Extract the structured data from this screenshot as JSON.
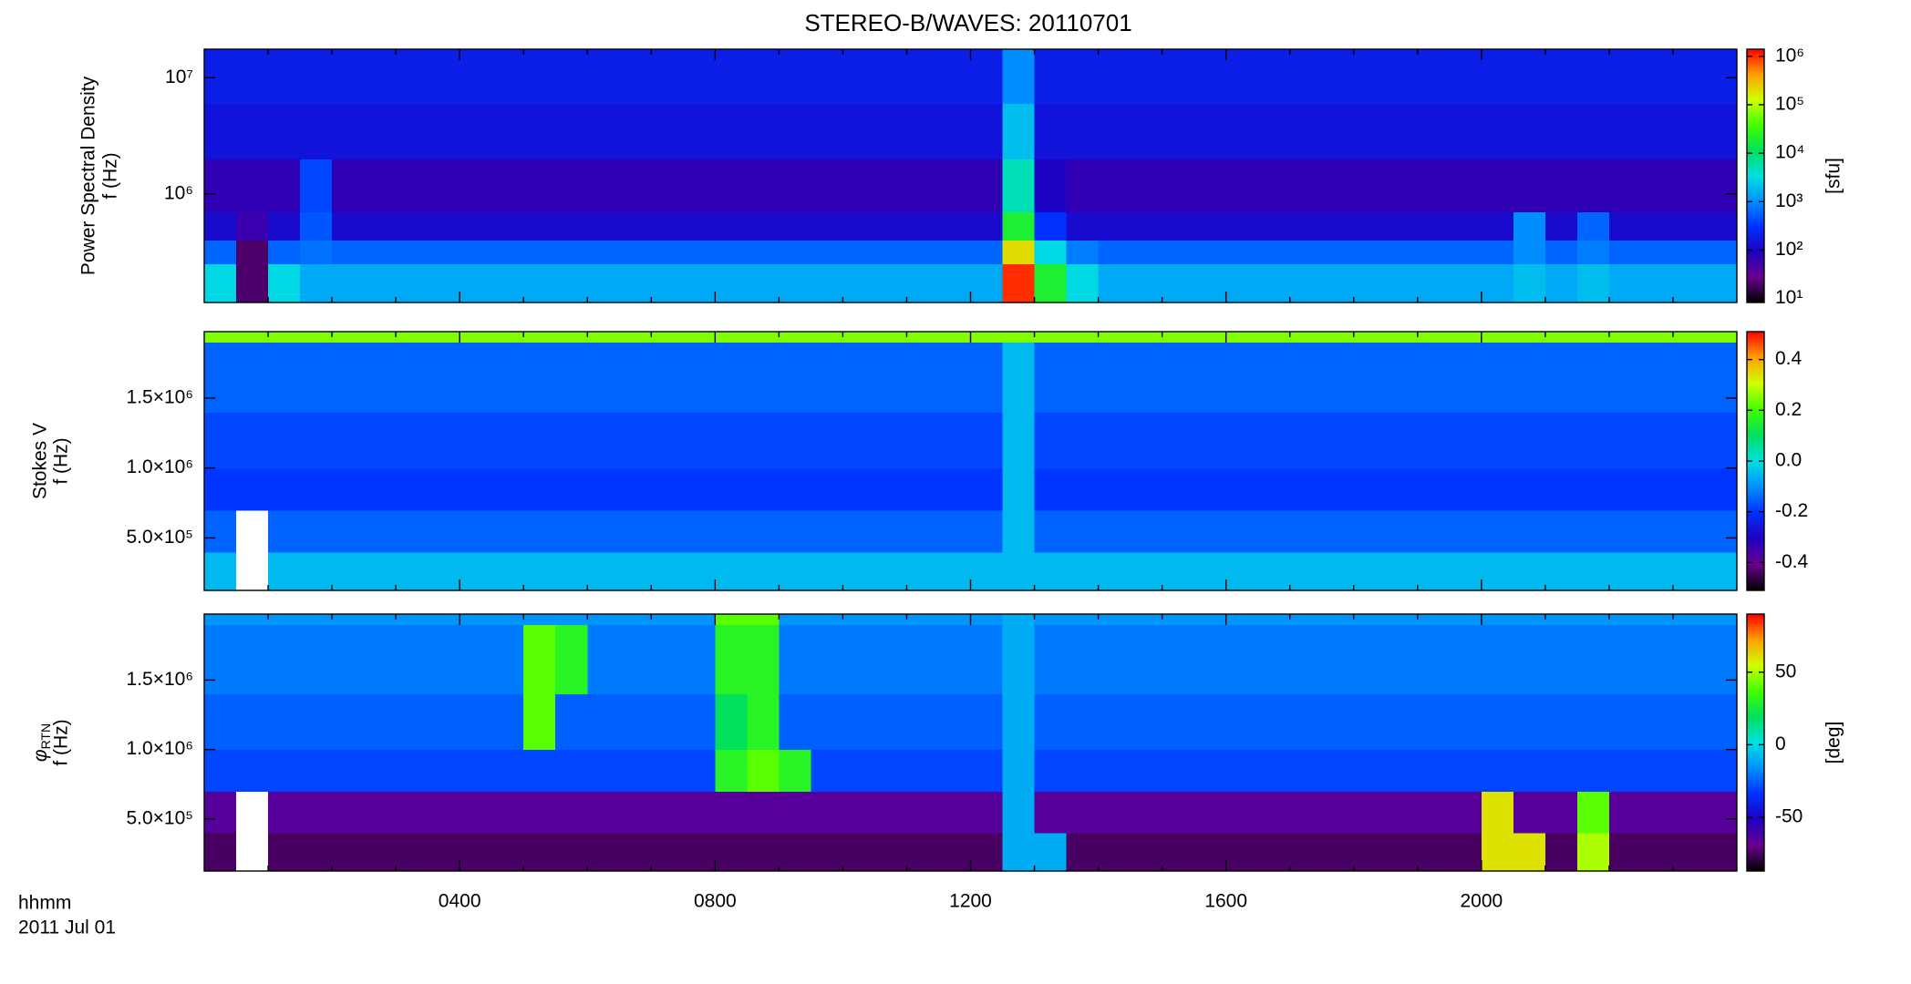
{
  "title": "STEREO-B/WAVES: 20110701",
  "colormap": [
    "#000000",
    "#6a0090",
    "#1f00c0",
    "#0030ff",
    "#0090ff",
    "#00e0e0",
    "#00e060",
    "#40ff00",
    "#d0ff00",
    "#ffa000",
    "#ff0000"
  ],
  "time_bins": [
    0,
    0.5,
    1,
    1.5,
    2,
    2.5,
    3,
    3.5,
    4,
    4.5,
    5,
    5.5,
    6,
    6.5,
    7,
    7.5,
    8,
    8.5,
    9,
    9.5,
    10,
    10.5,
    11,
    11.5,
    12,
    12.5,
    13,
    13.5,
    14,
    14.5,
    15,
    15.5,
    16,
    16.5,
    17,
    17.5,
    18,
    18.5,
    19,
    19.5,
    20,
    20.5,
    21,
    21.5,
    22,
    22.5,
    23,
    23.5,
    24
  ],
  "chart_data": [
    {
      "type": "spectrogram",
      "ylabel": "Power Spectral Density",
      "ylabel_unit": "f (Hz)",
      "xlim": [
        0,
        24
      ],
      "xticks": [
        4,
        8,
        12,
        16,
        20
      ],
      "xminor_ticks": [
        1,
        2,
        3,
        5,
        6,
        7,
        9,
        10,
        11,
        13,
        14,
        15,
        17,
        18,
        19,
        21,
        22,
        23
      ],
      "ylog": true,
      "ylim": [
        116000,
        17600000
      ],
      "yticks": [
        {
          "value": 1000000,
          "label": "10⁶"
        },
        {
          "value": 10000000,
          "label": "10⁷"
        }
      ],
      "y_bins": [
        116000,
        250000,
        400000,
        700000,
        2000000,
        6000000,
        17600000
      ],
      "clog": true,
      "clim": [
        8.3,
        1400000
      ],
      "clabel": "[sfu]",
      "cticks": [
        {
          "value": 10,
          "label": "10¹"
        },
        {
          "value": 100,
          "label": "10²"
        },
        {
          "value": 1000,
          "label": "10³"
        },
        {
          "value": 10000,
          "label": "10⁴"
        },
        {
          "value": 100000,
          "label": "10⁵"
        },
        {
          "value": 1000000,
          "label": "10⁶"
        }
      ],
      "z": [
        [
          3000,
          20,
          3000,
          1500,
          1500,
          1500,
          1500,
          1500,
          1500,
          1500,
          1500,
          1500,
          1500,
          1500,
          1500,
          1500,
          1500,
          1500,
          1500,
          1500,
          1500,
          1500,
          1500,
          1500,
          1500,
          1000000,
          20000,
          3000,
          1500,
          1500,
          1500,
          1500,
          1500,
          1500,
          1500,
          1500,
          1500,
          1500,
          1500,
          1500,
          1500,
          2000,
          1500,
          2000,
          1500,
          1500,
          1500,
          1500
        ],
        [
          600,
          20,
          600,
          700,
          600,
          600,
          600,
          600,
          600,
          600,
          600,
          600,
          600,
          600,
          600,
          600,
          600,
          600,
          600,
          600,
          600,
          600,
          600,
          600,
          600,
          200000,
          3000,
          800,
          600,
          600,
          600,
          600,
          600,
          600,
          600,
          600,
          600,
          600,
          600,
          600,
          600,
          1000,
          600,
          800,
          600,
          600,
          600,
          600
        ],
        [
          120,
          60,
          120,
          500,
          120,
          120,
          120,
          120,
          120,
          120,
          120,
          120,
          120,
          120,
          120,
          120,
          120,
          120,
          120,
          120,
          120,
          120,
          120,
          120,
          120,
          20000,
          300,
          120,
          120,
          120,
          120,
          120,
          120,
          120,
          120,
          120,
          120,
          120,
          120,
          120,
          120,
          1000,
          120,
          600,
          120,
          120,
          120,
          120
        ],
        [
          70,
          70,
          70,
          400,
          70,
          70,
          70,
          70,
          70,
          70,
          70,
          70,
          70,
          70,
          70,
          70,
          70,
          70,
          70,
          70,
          70,
          70,
          70,
          70,
          70,
          5000,
          100,
          70,
          70,
          70,
          70,
          70,
          70,
          70,
          70,
          70,
          70,
          70,
          70,
          70,
          70,
          70,
          70,
          70,
          70,
          70,
          70,
          70
        ],
        [
          150,
          150,
          150,
          150,
          150,
          150,
          150,
          150,
          150,
          150,
          150,
          150,
          150,
          150,
          150,
          150,
          150,
          150,
          150,
          150,
          150,
          150,
          150,
          150,
          150,
          2000,
          150,
          150,
          150,
          150,
          150,
          150,
          150,
          150,
          150,
          150,
          150,
          150,
          150,
          150,
          150,
          150,
          150,
          150,
          150,
          150,
          150,
          150
        ],
        [
          200,
          200,
          200,
          200,
          200,
          200,
          200,
          200,
          200,
          200,
          200,
          200,
          200,
          200,
          200,
          200,
          200,
          200,
          200,
          200,
          200,
          200,
          200,
          200,
          200,
          1000,
          200,
          200,
          200,
          200,
          200,
          200,
          200,
          200,
          200,
          200,
          200,
          200,
          200,
          200,
          200,
          200,
          200,
          200,
          200,
          200,
          200,
          200
        ]
      ]
    },
    {
      "type": "spectrogram",
      "ylabel": "Stokes V",
      "ylabel_unit": "f (Hz)",
      "xlim": [
        0,
        24
      ],
      "xticks": [
        4,
        8,
        12,
        16,
        20
      ],
      "xminor_ticks": [
        1,
        2,
        3,
        5,
        6,
        7,
        9,
        10,
        11,
        13,
        14,
        15,
        17,
        18,
        19,
        21,
        22,
        23
      ],
      "ylog": false,
      "ylim": [
        125000,
        1975000
      ],
      "yticks": [
        {
          "value": 500000,
          "label": "5.0×10⁵"
        },
        {
          "value": 1000000,
          "label": "1.0×10⁶"
        },
        {
          "value": 1500000,
          "label": "1.5×10⁶"
        }
      ],
      "y_bins": [
        125000,
        400000,
        700000,
        1000000,
        1400000,
        1900000,
        1975000
      ],
      "clog": false,
      "clim": [
        -0.51,
        0.51
      ],
      "cticks": [
        -0.4,
        -0.2,
        {
          "value": 0,
          "label": "0.0"
        },
        0.2,
        0.4
      ],
      "z": [
        [
          -0.05,
          null,
          -0.05,
          -0.05,
          -0.05,
          -0.05,
          -0.05,
          -0.05,
          -0.05,
          -0.05,
          -0.05,
          -0.05,
          -0.05,
          -0.05,
          -0.05,
          -0.05,
          -0.05,
          -0.05,
          -0.05,
          -0.05,
          -0.05,
          -0.05,
          -0.05,
          -0.05,
          -0.05,
          -0.05,
          -0.05,
          -0.05,
          -0.05,
          -0.05,
          -0.05,
          -0.05,
          -0.05,
          -0.05,
          -0.05,
          -0.05,
          -0.05,
          -0.05,
          -0.05,
          -0.05,
          -0.05,
          -0.05,
          -0.05,
          -0.05,
          -0.05,
          -0.05,
          -0.05,
          -0.05
        ],
        [
          -0.15,
          null,
          -0.15,
          -0.15,
          -0.15,
          -0.15,
          -0.15,
          -0.15,
          -0.15,
          -0.15,
          -0.15,
          -0.15,
          -0.15,
          -0.15,
          -0.15,
          -0.15,
          -0.15,
          -0.15,
          -0.15,
          -0.15,
          -0.15,
          -0.15,
          -0.15,
          -0.15,
          -0.15,
          -0.05,
          -0.15,
          -0.15,
          -0.15,
          -0.15,
          -0.15,
          -0.15,
          -0.15,
          -0.15,
          -0.15,
          -0.15,
          -0.15,
          -0.15,
          -0.15,
          -0.15,
          -0.15,
          -0.15,
          -0.15,
          -0.15,
          -0.15,
          -0.15,
          -0.15,
          -0.15
        ],
        [
          -0.2,
          -0.2,
          -0.2,
          -0.2,
          -0.2,
          -0.2,
          -0.2,
          -0.2,
          -0.2,
          -0.2,
          -0.2,
          -0.2,
          -0.2,
          -0.2,
          -0.2,
          -0.2,
          -0.2,
          -0.2,
          -0.2,
          -0.2,
          -0.2,
          -0.2,
          -0.2,
          -0.2,
          -0.2,
          -0.05,
          -0.2,
          -0.2,
          -0.2,
          -0.2,
          -0.2,
          -0.2,
          -0.2,
          -0.2,
          -0.2,
          -0.2,
          -0.2,
          -0.2,
          -0.2,
          -0.2,
          -0.2,
          -0.2,
          -0.2,
          -0.2,
          -0.2,
          -0.2,
          -0.2,
          -0.2
        ],
        [
          -0.18,
          -0.18,
          -0.18,
          -0.18,
          -0.18,
          -0.18,
          -0.18,
          -0.18,
          -0.18,
          -0.18,
          -0.18,
          -0.18,
          -0.18,
          -0.18,
          -0.18,
          -0.18,
          -0.18,
          -0.18,
          -0.18,
          -0.18,
          -0.18,
          -0.18,
          -0.18,
          -0.18,
          -0.18,
          -0.05,
          -0.18,
          -0.18,
          -0.18,
          -0.18,
          -0.18,
          -0.18,
          -0.18,
          -0.18,
          -0.18,
          -0.18,
          -0.18,
          -0.18,
          -0.18,
          -0.18,
          -0.18,
          -0.18,
          -0.18,
          -0.18,
          -0.18,
          -0.18,
          -0.18,
          -0.18
        ],
        [
          -0.15,
          -0.15,
          -0.15,
          -0.15,
          -0.15,
          -0.15,
          -0.15,
          -0.15,
          -0.15,
          -0.15,
          -0.15,
          -0.15,
          -0.15,
          -0.15,
          -0.15,
          -0.15,
          -0.15,
          -0.15,
          -0.15,
          -0.15,
          -0.15,
          -0.15,
          -0.15,
          -0.15,
          -0.15,
          -0.05,
          -0.15,
          -0.15,
          -0.15,
          -0.15,
          -0.15,
          -0.15,
          -0.15,
          -0.15,
          -0.15,
          -0.15,
          -0.15,
          -0.15,
          -0.15,
          -0.15,
          -0.15,
          -0.15,
          -0.15,
          -0.15,
          -0.15,
          -0.15,
          -0.15,
          -0.15
        ],
        [
          0.25,
          0.25,
          0.25,
          0.25,
          0.25,
          0.25,
          0.25,
          0.25,
          0.25,
          0.25,
          0.25,
          0.25,
          0.25,
          0.25,
          0.25,
          0.25,
          0.25,
          0.25,
          0.25,
          0.25,
          0.25,
          0.25,
          0.25,
          0.25,
          0.25,
          0.25,
          0.25,
          0.25,
          0.25,
          0.25,
          0.25,
          0.25,
          0.25,
          0.25,
          0.25,
          0.25,
          0.25,
          0.25,
          0.25,
          0.25,
          0.25,
          0.25,
          0.25,
          0.25,
          0.25,
          0.25,
          0.25,
          0.25
        ]
      ]
    },
    {
      "type": "spectrogram",
      "ylabel_symbol": "φ",
      "ylabel_subscript": "RTN",
      "ylabel_unit": "f (Hz)",
      "xlim": [
        0,
        24
      ],
      "xlabel": "hhmm",
      "date": "2011 Jul 01",
      "xticks": [
        {
          "value": 4,
          "label": "0400"
        },
        {
          "value": 8,
          "label": "0800"
        },
        {
          "value": 12,
          "label": "1200"
        },
        {
          "value": 16,
          "label": "1600"
        },
        {
          "value": 20,
          "label": "2000"
        }
      ],
      "xminor_ticks": [
        1,
        2,
        3,
        5,
        6,
        7,
        9,
        10,
        11,
        13,
        14,
        15,
        17,
        18,
        19,
        21,
        22,
        23
      ],
      "ylog": false,
      "ylim": [
        125000,
        1975000
      ],
      "yticks": [
        {
          "value": 500000,
          "label": "5.0×10⁵"
        },
        {
          "value": 1000000,
          "label": "1.0×10⁶"
        },
        {
          "value": 1500000,
          "label": "1.5×10⁶"
        }
      ],
      "y_bins": [
        125000,
        400000,
        700000,
        1000000,
        1400000,
        1900000,
        1975000
      ],
      "clog": false,
      "clim": [
        -87,
        90
      ],
      "clabel": "[deg]",
      "cticks": [
        -50,
        0,
        50
      ],
      "z": [
        [
          -75,
          null,
          -75,
          -75,
          -75,
          -75,
          -75,
          -75,
          -75,
          -75,
          -75,
          -75,
          -75,
          -75,
          -75,
          -75,
          -75,
          -75,
          -75,
          -75,
          -75,
          -75,
          -75,
          -75,
          -75,
          -10,
          -10,
          -75,
          -75,
          -75,
          -75,
          -75,
          -75,
          -75,
          -75,
          -75,
          -75,
          -75,
          -75,
          -75,
          60,
          60,
          -75,
          50,
          -75,
          -75,
          -75,
          -75
        ],
        [
          -65,
          null,
          -65,
          -65,
          -65,
          -65,
          -65,
          -65,
          -65,
          -65,
          -65,
          -65,
          -65,
          -65,
          -65,
          -65,
          -65,
          -65,
          -65,
          -65,
          -65,
          -65,
          -65,
          -65,
          -65,
          -10,
          -65,
          -65,
          -65,
          -65,
          -65,
          -65,
          -65,
          -65,
          -65,
          -65,
          -65,
          -65,
          -65,
          -65,
          60,
          -65,
          -65,
          40,
          -65,
          -65,
          -65,
          -65
        ],
        [
          -30,
          -30,
          -30,
          -30,
          -30,
          -30,
          -30,
          -30,
          -30,
          -30,
          -30,
          -30,
          -30,
          -30,
          -30,
          -30,
          30,
          40,
          30,
          -30,
          -30,
          -30,
          -30,
          -30,
          -30,
          -10,
          -30,
          -30,
          -30,
          -30,
          -30,
          -30,
          -30,
          -30,
          -30,
          -30,
          -30,
          -30,
          -30,
          -30,
          -30,
          -30,
          -30,
          -30,
          -30,
          -30,
          -30,
          -30
        ],
        [
          -25,
          -25,
          -25,
          -25,
          -25,
          -25,
          -25,
          -25,
          -25,
          -25,
          40,
          -25,
          -25,
          -25,
          -25,
          -25,
          20,
          30,
          -25,
          -25,
          -25,
          -25,
          -25,
          -25,
          -25,
          -10,
          -25,
          -25,
          -25,
          -25,
          -25,
          -25,
          -25,
          -25,
          -25,
          -25,
          -25,
          -25,
          -25,
          -25,
          -25,
          -25,
          -25,
          -25,
          -25,
          -25,
          -25,
          -25
        ],
        [
          -20,
          -20,
          -20,
          -20,
          -20,
          -20,
          -20,
          -20,
          -20,
          -20,
          40,
          30,
          -20,
          -20,
          -20,
          -20,
          30,
          30,
          -20,
          -20,
          -20,
          -20,
          -20,
          -20,
          -20,
          -10,
          -20,
          -20,
          -20,
          -20,
          -20,
          -20,
          -20,
          -20,
          -20,
          -20,
          -20,
          -20,
          -20,
          -20,
          -20,
          -20,
          -20,
          -20,
          -20,
          -20,
          -20,
          -20
        ],
        [
          -15,
          -15,
          -15,
          -15,
          -15,
          -15,
          -15,
          -15,
          -15,
          -15,
          -15,
          -15,
          -15,
          -15,
          -15,
          -15,
          40,
          40,
          -15,
          -15,
          -15,
          -15,
          -15,
          -15,
          -15,
          -10,
          -15,
          -15,
          -15,
          -15,
          -15,
          -15,
          -15,
          -15,
          -15,
          -15,
          -15,
          -15,
          -15,
          -15,
          -15,
          -15,
          -15,
          -15,
          -15,
          -15,
          -15,
          -15
        ]
      ]
    }
  ]
}
